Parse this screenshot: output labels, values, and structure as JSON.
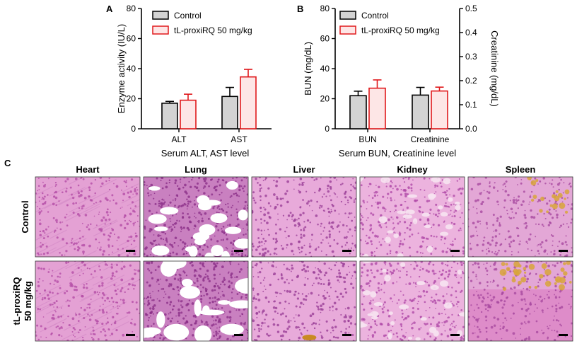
{
  "panels": {
    "a_label": "A",
    "b_label": "B",
    "c_label": "C"
  },
  "legend": {
    "control": "Control",
    "treated": "tL-proxiRQ 50 mg/kg"
  },
  "colors": {
    "control_fill": "#d3d3d3",
    "control_stroke": "#000000",
    "treated_fill": "#fde6e6",
    "treated_stroke": "#e0191c",
    "he_stain_base": "#e9a6d8",
    "he_stain_dark": "#c65fb4",
    "spleen_pigment": "#d8a53a"
  },
  "chart_data": [
    {
      "type": "bar",
      "title": "",
      "categories": [
        "ALT",
        "AST"
      ],
      "xlabel": "Serum ALT, AST level",
      "ylabel": "Enzyme activity (IU/L)",
      "ylim": [
        0,
        80
      ],
      "yticks": [
        "0",
        "20",
        "40",
        "60",
        "80"
      ],
      "series": [
        {
          "name": "Control",
          "values": [
            17,
            21.5
          ],
          "errors": [
            1.2,
            6
          ]
        },
        {
          "name": "tL-proxiRQ 50 mg/kg",
          "values": [
            19,
            34.5
          ],
          "errors": [
            4,
            5
          ]
        }
      ],
      "grid": false,
      "legend_position": "top-left"
    },
    {
      "type": "bar",
      "title": "",
      "categories": [
        "BUN",
        "Creatinine"
      ],
      "xlabel": "Serum BUN, Creatinine level",
      "ylabel": "BUN (mg/dL)",
      "ylabel_right": "Creatinine (mg/dL)",
      "ylim": [
        0,
        80
      ],
      "ylim_right": [
        0,
        0.5
      ],
      "yticks": [
        "0",
        "20",
        "40",
        "60",
        "80"
      ],
      "yticks_right": [
        "0.0",
        "0.1",
        "0.2",
        "0.3",
        "0.4",
        "0.5"
      ],
      "series": [
        {
          "name": "Control",
          "values": [
            22,
            0.14
          ],
          "errors": [
            3,
            0.032
          ],
          "axes": [
            "left",
            "right"
          ]
        },
        {
          "name": "tL-proxiRQ 50 mg/kg",
          "values": [
            27,
            0.157
          ],
          "errors": [
            5.5,
            0.016
          ],
          "axes": [
            "left",
            "right"
          ]
        }
      ],
      "grid": false,
      "legend_position": "top-left"
    }
  ],
  "histology": {
    "columns": [
      "Heart",
      "Lung",
      "Liver",
      "Kidney",
      "Spleen"
    ],
    "rows": [
      "Control",
      "tL-proxiRQ\n50 mg/kg"
    ],
    "row_line1": [
      "Control",
      "tL-proxiRQ"
    ],
    "row_line2": [
      "",
      "50 mg/kg"
    ]
  }
}
